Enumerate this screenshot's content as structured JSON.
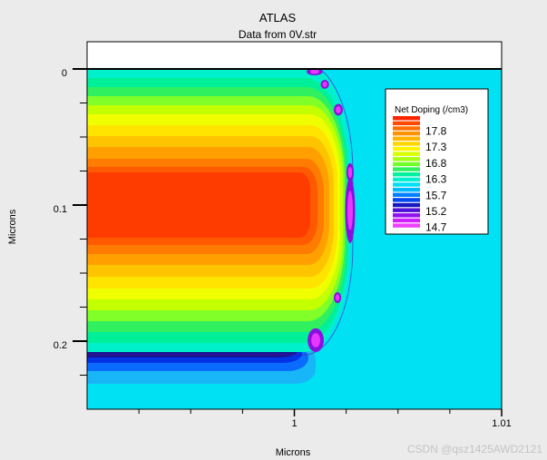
{
  "chart_data": {
    "type": "heatmap",
    "title": "ATLAS",
    "subtitle": "Data from 0V.str",
    "xlabel": "Microns",
    "ylabel": "Microns",
    "xlim": [
      0.99,
      1.01
    ],
    "ylim": [
      -0.02,
      0.25
    ],
    "y_inverted": true,
    "grid": false,
    "x_ticks": [
      {
        "value": 1,
        "label": "1"
      },
      {
        "value": 1.01,
        "label": "1.01"
      }
    ],
    "x_minor_ticks": [
      0.9925,
      0.995,
      0.9975,
      1.0025,
      1.005,
      1.0075
    ],
    "y_ticks": [
      {
        "value": 0,
        "label": "0"
      },
      {
        "value": 0.1,
        "label": "0.1"
      },
      {
        "value": 0.2,
        "label": "0.2"
      }
    ],
    "y_minor_ticks": [
      0.025,
      0.05,
      0.075,
      0.125,
      0.15,
      0.175,
      0.225
    ],
    "surface_y": 0,
    "colors": {
      "substrate": "#00e2f4",
      "air": "#ffffff",
      "junction": "#4a1aa0",
      "spot_outer": "#8a10e0",
      "spot_inner": "#e838ff"
    },
    "legend": {
      "title": "Net Doping (/cm3)",
      "position": "top-right",
      "labels": [
        "17.8",
        "17.3",
        "16.8",
        "16.3",
        "15.7",
        "15.2",
        "14.7"
      ],
      "colors": [
        "#ff2400",
        "#ff4a00",
        "#ff6e00",
        "#ff9200",
        "#ffb400",
        "#ffd600",
        "#fff400",
        "#d8ff00",
        "#a8ff10",
        "#70ff28",
        "#30f060",
        "#00f0a0",
        "#00f0d0",
        "#00e0f8",
        "#00b8ff",
        "#0080ff",
        "#0048f0",
        "#1818c0",
        "#5010d8",
        "#9010f0",
        "#d020ff",
        "#f040ff"
      ]
    },
    "bands": [
      {
        "color": "#00f0cc",
        "x_max": 1.00269,
        "y_top": -0.004,
        "y_bottom": 0.208
      },
      {
        "color": "#00f09a",
        "x_max": 1.0026,
        "y_top": 0.0067,
        "y_bottom": 0.2013
      },
      {
        "color": "#30f060",
        "x_max": 1.00252,
        "y_top": 0.0133,
        "y_bottom": 0.1933
      },
      {
        "color": "#80ff28",
        "x_max": 1.00243,
        "y_top": 0.02,
        "y_bottom": 0.1853
      },
      {
        "color": "#c4ff00",
        "x_max": 1.00234,
        "y_top": 0.0267,
        "y_bottom": 0.1773
      },
      {
        "color": "#f0ff00",
        "x_max": 1.00221,
        "y_top": 0.0333,
        "y_bottom": 0.1693
      },
      {
        "color": "#ffe400",
        "x_max": 1.00208,
        "y_top": 0.0413,
        "y_bottom": 0.1613
      },
      {
        "color": "#ffc400",
        "x_max": 1.0019,
        "y_top": 0.0493,
        "y_bottom": 0.1527
      },
      {
        "color": "#ffa000",
        "x_max": 1.00168,
        "y_top": 0.0573,
        "y_bottom": 0.144
      },
      {
        "color": "#ff7c00",
        "x_max": 1.00142,
        "y_top": 0.066,
        "y_bottom": 0.136
      },
      {
        "color": "#ff5a00",
        "x_max": 1.00112,
        "y_top": 0.072,
        "y_bottom": 0.1293
      },
      {
        "color": "#ff3c00",
        "x_max": 1.00077,
        "y_top": 0.076,
        "y_bottom": 0.124
      }
    ],
    "bottom_bands": [
      {
        "color": "#18b6f6",
        "x_max": 1.00103,
        "y_top": 0.2027,
        "y_bottom": 0.2313
      },
      {
        "color": "#0a6cff",
        "x_max": 1.00068,
        "y_top": 0.2027,
        "y_bottom": 0.222
      },
      {
        "color": "#0032e6",
        "x_max": 1.00037,
        "y_top": 0.2027,
        "y_bottom": 0.216
      },
      {
        "color": "#1a1290",
        "x_max": 1.00015,
        "y_top": 0.2027,
        "y_bottom": 0.212
      }
    ],
    "junction": {
      "x_max": 1.00282,
      "y_top": -0.004,
      "y_bottom": 0.21
    },
    "spots": [
      {
        "x": 1.00098,
        "y": 0.002,
        "dx": 0.00039,
        "dy": 0.0027
      },
      {
        "x": 1.00147,
        "y": 0.0113,
        "dx": 0.0002,
        "dy": 0.0033
      },
      {
        "x": 1.00212,
        "y": 0.03,
        "dx": 0.00022,
        "dy": 0.0043
      },
      {
        "x": 1.00269,
        "y": 0.076,
        "dx": 0.00018,
        "dy": 0.0067
      },
      {
        "x": 1.00269,
        "y": 0.104,
        "dx": 0.00024,
        "dy": 0.024
      },
      {
        "x": 1.00208,
        "y": 0.168,
        "dx": 0.00018,
        "dy": 0.004
      },
      {
        "x": 1.00103,
        "y": 0.1993,
        "dx": 0.00039,
        "dy": 0.0087
      }
    ]
  },
  "watermark": "CSDN @qsz1425AWD2121"
}
